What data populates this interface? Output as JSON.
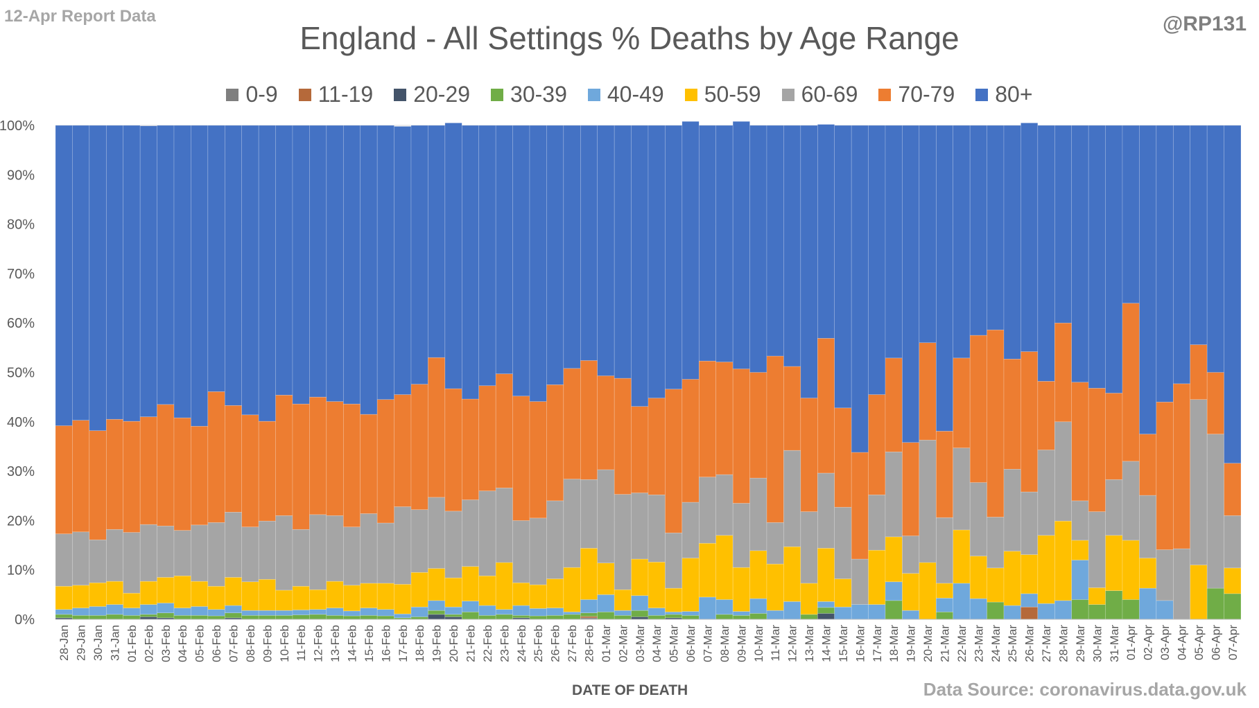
{
  "header": {
    "report_label": "12-Apr Report Data",
    "handle": "@RP131",
    "source": "Data Source: coronavirus.data.gov.uk"
  },
  "chart_data": {
    "type": "bar",
    "stacked": true,
    "title": "England - All Settings % Deaths by Age Range",
    "xlabel": "DATE OF DEATH",
    "ylabel": "",
    "ylim": [
      0,
      100
    ],
    "yticks": [
      "0%",
      "10%",
      "20%",
      "30%",
      "40%",
      "50%",
      "60%",
      "70%",
      "80%",
      "90%",
      "100%"
    ],
    "legend_position": "top",
    "grid": true,
    "categories": [
      "28-Jan",
      "29-Jan",
      "30-Jan",
      "31-Jan",
      "01-Feb",
      "02-Feb",
      "03-Feb",
      "04-Feb",
      "05-Feb",
      "06-Feb",
      "07-Feb",
      "08-Feb",
      "09-Feb",
      "10-Feb",
      "11-Feb",
      "12-Feb",
      "13-Feb",
      "14-Feb",
      "15-Feb",
      "16-Feb",
      "17-Feb",
      "18-Feb",
      "19-Feb",
      "20-Feb",
      "21-Feb",
      "22-Feb",
      "23-Feb",
      "24-Feb",
      "25-Feb",
      "26-Feb",
      "27-Feb",
      "28-Feb",
      "01-Mar",
      "02-Mar",
      "03-Mar",
      "04-Mar",
      "05-Mar",
      "06-Mar",
      "07-Mar",
      "08-Mar",
      "09-Mar",
      "10-Mar",
      "11-Mar",
      "12-Mar",
      "13-Mar",
      "14-Mar",
      "15-Mar",
      "16-Mar",
      "17-Mar",
      "18-Mar",
      "19-Mar",
      "20-Mar",
      "21-Mar",
      "22-Mar",
      "23-Mar",
      "24-Mar",
      "25-Mar",
      "26-Mar",
      "27-Mar",
      "28-Mar",
      "29-Mar",
      "30-Mar",
      "31-Mar",
      "01-Apr",
      "02-Apr",
      "03-Apr",
      "04-Apr",
      "05-Apr",
      "06-Apr",
      "07-Apr"
    ],
    "tick_labels": [
      "28-Jan",
      "29-Jan",
      "30-Jan",
      "31-Jan",
      "01-Feb",
      "02-Feb",
      "03-Feb",
      "04-Feb",
      "05-Feb",
      "06-Feb",
      "07-Feb",
      "08-Feb",
      "09-Feb",
      "10-Feb",
      "11-Feb",
      "12-Feb",
      "13-Feb",
      "14-Feb",
      "15-Feb",
      "16-Feb",
      "17-Feb",
      "18-Feb",
      "19-Feb",
      "20-Feb",
      "21-Feb",
      "22-Feb",
      "23-Feb",
      "24-Feb",
      "25-Feb",
      "26-Feb",
      "27-Feb",
      "28-Feb",
      "01-Mar",
      "02-Mar",
      "03-Mar",
      "04-Mar",
      "05-Mar",
      "06-Mar",
      "07-Mar",
      "08-Mar",
      "09-Mar",
      "10-Mar",
      "11-Mar",
      "12-Mar",
      "13-Mar",
      "14-Mar",
      "15-Mar",
      "16-Mar",
      "17-Mar",
      "18-Mar",
      "19-Mar",
      "20-Mar",
      "21-Mar",
      "22-Mar",
      "23-Mar",
      "24-Mar",
      "25-Mar",
      "26-Mar",
      "27-Mar",
      "28-Mar",
      "29-Mar",
      "30-Mar",
      "31-Mar",
      "01-Apr",
      "02-Apr",
      "03-Apr",
      "04-Apr",
      "05-Apr",
      "06-Apr",
      "07-Apr"
    ],
    "series": [
      {
        "name": "0-9",
        "color": "#7f7f7f",
        "values": [
          0,
          0,
          0,
          0,
          0,
          0,
          0,
          0,
          0,
          0,
          0,
          0,
          0,
          0,
          0,
          0,
          0,
          0,
          0,
          0,
          0,
          0,
          0,
          0,
          0,
          0,
          0,
          0,
          0,
          0,
          0,
          0.3,
          0,
          0,
          0,
          0,
          0,
          0,
          0,
          0,
          0,
          0,
          0,
          0,
          0,
          0,
          0,
          0,
          0,
          0,
          0,
          0,
          0,
          0,
          0,
          0,
          0,
          0,
          0,
          0,
          0,
          0,
          0,
          0,
          0,
          0,
          0,
          0,
          0,
          0
        ]
      },
      {
        "name": "11-19",
        "color": "#b5693a",
        "values": [
          0,
          0,
          0,
          0,
          0,
          0,
          0,
          0,
          0,
          0,
          0,
          0,
          0,
          0,
          0,
          0,
          0,
          0,
          0,
          0,
          0,
          0,
          0,
          0,
          0,
          0,
          0,
          0,
          0,
          0,
          0,
          0.3,
          0,
          0,
          0,
          0,
          0,
          0,
          0,
          0,
          0,
          0,
          0,
          0,
          0,
          0,
          0,
          0,
          0,
          0,
          0,
          0,
          0,
          0,
          0,
          0,
          0,
          2.5,
          0,
          0,
          0,
          0,
          0,
          0,
          0,
          0,
          0,
          0,
          0,
          0
        ]
      },
      {
        "name": "20-29",
        "color": "#44546a",
        "values": [
          0.3,
          0,
          0,
          0,
          0,
          0.5,
          0.3,
          0,
          0,
          0,
          0.3,
          0,
          0,
          0,
          0,
          0,
          0,
          0,
          0,
          0,
          0,
          0,
          1,
          0.5,
          0,
          0,
          0,
          0.3,
          0,
          0,
          0,
          0,
          0,
          0,
          0.5,
          0,
          0.3,
          0,
          0,
          0,
          0,
          0,
          0,
          0,
          0,
          1.2,
          0,
          0,
          0,
          0,
          0,
          0,
          0,
          0,
          0,
          0,
          0,
          0,
          0,
          0,
          0,
          0,
          0,
          0,
          0,
          0,
          0,
          0,
          0,
          0
        ]
      },
      {
        "name": "30-39",
        "color": "#70ad47",
        "values": [
          0.7,
          0.8,
          0.8,
          1,
          0.8,
          0.5,
          1,
          0.8,
          0.8,
          0.7,
          1,
          0.8,
          0.8,
          0.8,
          0.9,
          1,
          0.8,
          0.7,
          0.8,
          0.7,
          0.3,
          0.5,
          0.8,
          0.5,
          1.5,
          0.8,
          1,
          0.5,
          0.7,
          0.8,
          1,
          0.7,
          1.5,
          0.8,
          1.3,
          0.8,
          0.7,
          0.8,
          0,
          1,
          0.8,
          1.2,
          0,
          0,
          1,
          1.2,
          0,
          0,
          0,
          3.8,
          0,
          0,
          1.5,
          0,
          0,
          3.5,
          0,
          0,
          0,
          0,
          4,
          3,
          5.8,
          4,
          0,
          0,
          0,
          0,
          6.3,
          5.2
        ]
      },
      {
        "name": "40-49",
        "color": "#6fa8dc",
        "values": [
          1,
          1.5,
          1.8,
          2,
          1.5,
          2,
          2,
          1.5,
          1.8,
          1.3,
          1.5,
          1,
          1,
          1,
          1,
          1,
          1.5,
          1,
          1.5,
          1.3,
          0.8,
          2,
          2,
          1.5,
          2.2,
          2,
          1,
          2,
          1.5,
          1.5,
          0.5,
          2.7,
          3.5,
          1,
          3,
          1.5,
          0.5,
          0.8,
          4.5,
          3,
          0.8,
          3,
          1.8,
          3.6,
          0,
          1.2,
          2.5,
          3,
          3,
          3.8,
          1.8,
          0,
          2.8,
          7.3,
          4.2,
          0,
          2.8,
          2.7,
          3.2,
          3.8,
          8,
          0,
          0,
          0,
          6.3,
          3.8,
          0,
          0,
          0,
          0
        ]
      },
      {
        "name": "50-59",
        "color": "#ffc000",
        "values": [
          4.7,
          4.6,
          4.8,
          4.7,
          3,
          4.7,
          5.2,
          6.5,
          5.1,
          4.7,
          5.7,
          5.8,
          6.3,
          4.1,
          4.8,
          4,
          5.4,
          5.2,
          5,
          5.3,
          6,
          7,
          6.5,
          5.9,
          7,
          6,
          9.5,
          4.6,
          4.8,
          5.9,
          9,
          10.4,
          6.4,
          4.2,
          7.4,
          9.3,
          4.8,
          10.8,
          10.9,
          13,
          8.9,
          9.7,
          9.4,
          11.1,
          6.3,
          10.8,
          5.7,
          0,
          11,
          9.1,
          7.5,
          11.5,
          3,
          10.8,
          8.6,
          6.9,
          11,
          7.9,
          13.8,
          16.1,
          4,
          3.4,
          11.2,
          12,
          6.1,
          0,
          0,
          11,
          0,
          5.2
        ]
      },
      {
        "name": "60-69",
        "color": "#a5a5a5",
        "values": [
          10.6,
          10.8,
          8.7,
          10.5,
          12.3,
          11.5,
          10.4,
          9.2,
          11.4,
          12.9,
          13.2,
          11.1,
          11.8,
          15.1,
          11.5,
          15.2,
          13.3,
          11.8,
          14.1,
          12.2,
          15.7,
          12.7,
          14.4,
          13.5,
          13.5,
          17.2,
          15.1,
          12.6,
          13.5,
          15.8,
          17.9,
          13.9,
          18.9,
          19.3,
          13.4,
          13.6,
          11.2,
          11.3,
          13.4,
          12.3,
          13,
          14.7,
          8.4,
          19.5,
          14.5,
          15.2,
          14.5,
          9.2,
          11.2,
          17.2,
          7.6,
          24.8,
          13.3,
          16.6,
          14.9,
          10.3,
          16.6,
          12.7,
          17.3,
          20.1,
          8,
          15.4,
          11.3,
          16,
          12.7,
          10.3,
          14.3,
          33.5,
          31.2,
          10.6
        ]
      },
      {
        "name": "70-79",
        "color": "#ed7d31",
        "values": [
          21.9,
          22.6,
          22.1,
          22.3,
          22.5,
          21.8,
          24.6,
          22.8,
          20,
          26.5,
          21.6,
          22.7,
          20.2,
          24.4,
          25.4,
          23.8,
          23.1,
          24.9,
          20.1,
          25,
          22.7,
          25.4,
          28.3,
          24.8,
          20.4,
          21.3,
          23.1,
          25.2,
          23.6,
          23.5,
          22.4,
          24.1,
          19,
          23.5,
          17.5,
          19.6,
          29.1,
          24.9,
          23.5,
          22.8,
          27.2,
          21.4,
          33.7,
          17,
          23,
          27.3,
          20.1,
          21.6,
          20.3,
          19,
          18.9,
          19.7,
          17.5,
          18.2,
          29.8,
          37.9,
          22.3,
          28.4,
          13.9,
          20,
          24,
          25,
          17.5,
          32,
          12.4,
          29.9,
          33.4,
          11.1,
          12.5,
          10.6
        ]
      },
      {
        "name": "80+",
        "color": "#4472c4",
        "values": [
          60.8,
          59.7,
          61.8,
          59.5,
          59.9,
          58.9,
          56.5,
          59.2,
          60.9,
          53.9,
          56.7,
          58.6,
          59.9,
          54.6,
          56.4,
          55,
          55.9,
          56.4,
          58.5,
          55.5,
          54.3,
          52.4,
          47,
          53.8,
          55.4,
          52.7,
          50.3,
          54.8,
          55.9,
          52.5,
          49.2,
          47.6,
          50.7,
          51.2,
          56.9,
          55.2,
          53.4,
          52.2,
          47.7,
          47.9,
          50.1,
          50,
          46.7,
          48.8,
          55.2,
          43.3,
          57.2,
          66.2,
          54.5,
          47.1,
          64.2,
          44,
          61.9,
          47.1,
          42.5,
          41.4,
          47.3,
          46.3,
          51.8,
          40,
          52,
          53.2,
          54.2,
          36,
          62.5,
          56,
          52.3,
          44.4,
          50,
          68.4
        ]
      }
    ]
  }
}
